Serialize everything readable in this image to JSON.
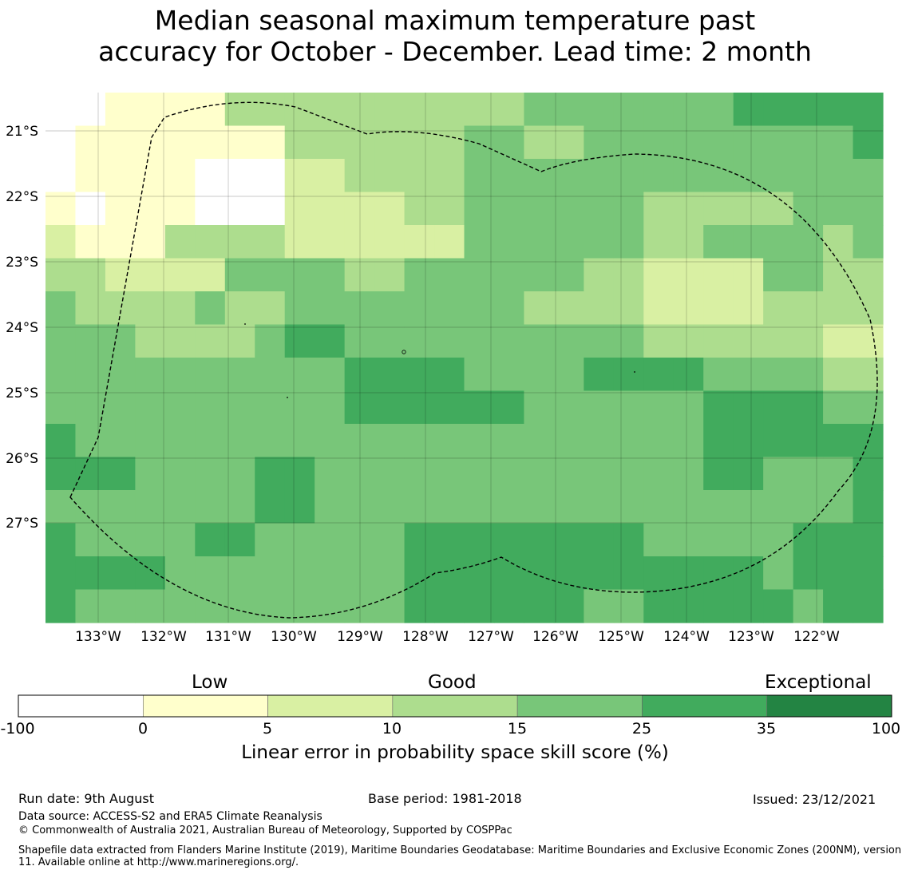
{
  "title": {
    "line1": "Median seasonal maximum temperature past",
    "line2": "accuracy for October - December. Lead time: 2 month"
  },
  "map": {
    "lat_labels": [
      "21°S",
      "22°S",
      "23°S",
      "24°S",
      "25°S",
      "26°S",
      "27°S"
    ],
    "lon_labels": [
      "133°W",
      "132°W",
      "131°W",
      "130°W",
      "129°W",
      "128°W",
      "127°W",
      "126°W",
      "125°W",
      "124°W",
      "123°W",
      "122°W"
    ],
    "grid": [
      [
        0,
        0,
        1,
        1,
        1,
        1,
        3,
        3,
        3,
        3,
        3,
        3,
        3,
        3,
        3,
        3,
        4,
        4,
        4,
        4,
        4,
        4,
        4,
        5,
        5,
        5,
        5,
        5
      ],
      [
        0,
        1,
        1,
        1,
        1,
        1,
        1,
        1,
        3,
        3,
        3,
        3,
        3,
        3,
        4,
        4,
        3,
        3,
        4,
        4,
        4,
        4,
        4,
        4,
        4,
        4,
        4,
        5
      ],
      [
        0,
        1,
        1,
        1,
        1,
        0,
        0,
        0,
        2,
        2,
        3,
        3,
        3,
        3,
        4,
        4,
        4,
        4,
        4,
        4,
        4,
        4,
        4,
        4,
        4,
        4,
        4,
        4
      ],
      [
        1,
        0,
        1,
        1,
        1,
        0,
        0,
        0,
        2,
        2,
        2,
        2,
        3,
        3,
        4,
        4,
        4,
        4,
        4,
        4,
        3,
        3,
        3,
        3,
        3,
        4,
        4,
        4
      ],
      [
        2,
        1,
        1,
        1,
        3,
        3,
        3,
        3,
        2,
        2,
        2,
        2,
        2,
        2,
        4,
        4,
        4,
        4,
        4,
        4,
        3,
        3,
        4,
        4,
        4,
        4,
        3,
        4
      ],
      [
        3,
        3,
        2,
        2,
        2,
        2,
        4,
        4,
        4,
        4,
        3,
        3,
        4,
        4,
        4,
        4,
        4,
        4,
        3,
        3,
        2,
        2,
        2,
        2,
        4,
        4,
        3,
        3
      ],
      [
        4,
        3,
        3,
        3,
        3,
        4,
        3,
        3,
        4,
        4,
        4,
        4,
        4,
        4,
        4,
        4,
        3,
        3,
        3,
        3,
        2,
        2,
        2,
        2,
        3,
        3,
        3,
        3
      ],
      [
        4,
        4,
        4,
        3,
        3,
        3,
        3,
        4,
        5,
        5,
        4,
        4,
        4,
        4,
        4,
        4,
        4,
        4,
        4,
        4,
        3,
        3,
        3,
        3,
        3,
        3,
        2,
        2
      ],
      [
        4,
        4,
        4,
        4,
        4,
        4,
        4,
        4,
        4,
        4,
        5,
        5,
        5,
        5,
        4,
        4,
        4,
        4,
        5,
        5,
        5,
        5,
        4,
        4,
        4,
        4,
        3,
        3
      ],
      [
        4,
        4,
        4,
        4,
        4,
        4,
        4,
        4,
        4,
        4,
        5,
        5,
        5,
        5,
        5,
        5,
        4,
        4,
        4,
        4,
        4,
        4,
        5,
        5,
        5,
        5,
        4,
        4
      ],
      [
        5,
        4,
        4,
        4,
        4,
        4,
        4,
        4,
        4,
        4,
        4,
        4,
        4,
        4,
        4,
        4,
        4,
        4,
        4,
        4,
        4,
        4,
        5,
        5,
        5,
        5,
        5,
        5
      ],
      [
        5,
        5,
        5,
        4,
        4,
        4,
        4,
        5,
        5,
        4,
        4,
        4,
        4,
        4,
        4,
        4,
        4,
        4,
        4,
        4,
        4,
        4,
        5,
        5,
        4,
        4,
        4,
        5
      ],
      [
        4,
        4,
        4,
        4,
        4,
        4,
        4,
        5,
        5,
        4,
        4,
        4,
        4,
        4,
        4,
        4,
        4,
        4,
        4,
        4,
        4,
        4,
        4,
        4,
        4,
        4,
        4,
        5
      ],
      [
        5,
        4,
        4,
        4,
        4,
        5,
        5,
        4,
        4,
        4,
        4,
        4,
        5,
        5,
        5,
        5,
        5,
        5,
        5,
        5,
        4,
        4,
        4,
        4,
        4,
        5,
        5,
        5
      ],
      [
        5,
        5,
        5,
        5,
        4,
        4,
        4,
        4,
        4,
        4,
        4,
        4,
        5,
        5,
        5,
        5,
        5,
        5,
        5,
        5,
        5,
        5,
        5,
        5,
        4,
        5,
        5,
        5
      ],
      [
        5,
        4,
        4,
        4,
        4,
        4,
        4,
        4,
        4,
        4,
        4,
        4,
        5,
        5,
        5,
        5,
        5,
        5,
        4,
        4,
        5,
        5,
        5,
        5,
        5,
        4,
        5,
        5
      ]
    ]
  },
  "colorbar": {
    "colors": [
      "#ffffff",
      "#ffffcc",
      "#d9f0a3",
      "#addd8e",
      "#78c679",
      "#41ab5d",
      "#238443"
    ],
    "ticks": [
      "-100",
      "0",
      "5",
      "10",
      "15",
      "25",
      "35",
      "100"
    ],
    "categories": [
      "Low",
      "Good",
      "Exceptional"
    ],
    "label": "Linear error in probability space skill score (%)"
  },
  "footer": {
    "run_date": "Run date: 9th August",
    "base_period": "Base period: 1981-2018",
    "issued": "Issued: 23/12/2021",
    "data_source": "Data source: ACCESS-S2 and ERA5 Climate Reanalysis",
    "copyright": "© Commonwealth of Australia 2021, Australian Bureau of Meteorology, Supported by COSPPac",
    "shapefile": "Shapefile data extracted from Flanders Marine Institute (2019), Maritime Boundaries Geodatabase: Maritime Boundaries and Exclusive Economic Zones (200NM), version 11. Available online at http://www.marineregions.org/."
  }
}
